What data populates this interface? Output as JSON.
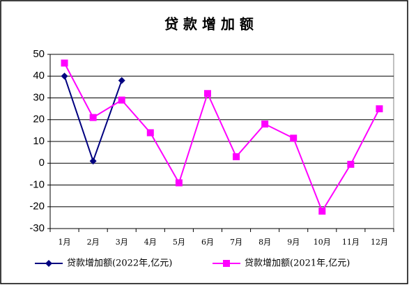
{
  "chart_data": {
    "type": "line",
    "title": "贷 款 增 加 额",
    "categories": [
      "1月",
      "2月",
      "3月",
      "4月",
      "5月",
      "6月",
      "7月",
      "8月",
      "9月",
      "10月",
      "11月",
      "12月"
    ],
    "series": [
      {
        "name": "贷款增加额(2022年,亿元)",
        "color": "#000080",
        "marker": "diamond",
        "values": [
          40,
          1,
          38,
          null,
          null,
          null,
          null,
          null,
          null,
          null,
          null,
          null
        ]
      },
      {
        "name": "贷款增加额(2021年,亿元)",
        "color": "#ff00ff",
        "marker": "square",
        "values": [
          46,
          21,
          29,
          14,
          -9,
          32,
          3,
          18,
          11.5,
          -22,
          -0.5,
          25
        ]
      }
    ],
    "ylim": [
      -30,
      50
    ],
    "yticks": [
      -30,
      -20,
      -10,
      0,
      10,
      20,
      30,
      40,
      50
    ],
    "grid": true,
    "legend": "bottom"
  }
}
